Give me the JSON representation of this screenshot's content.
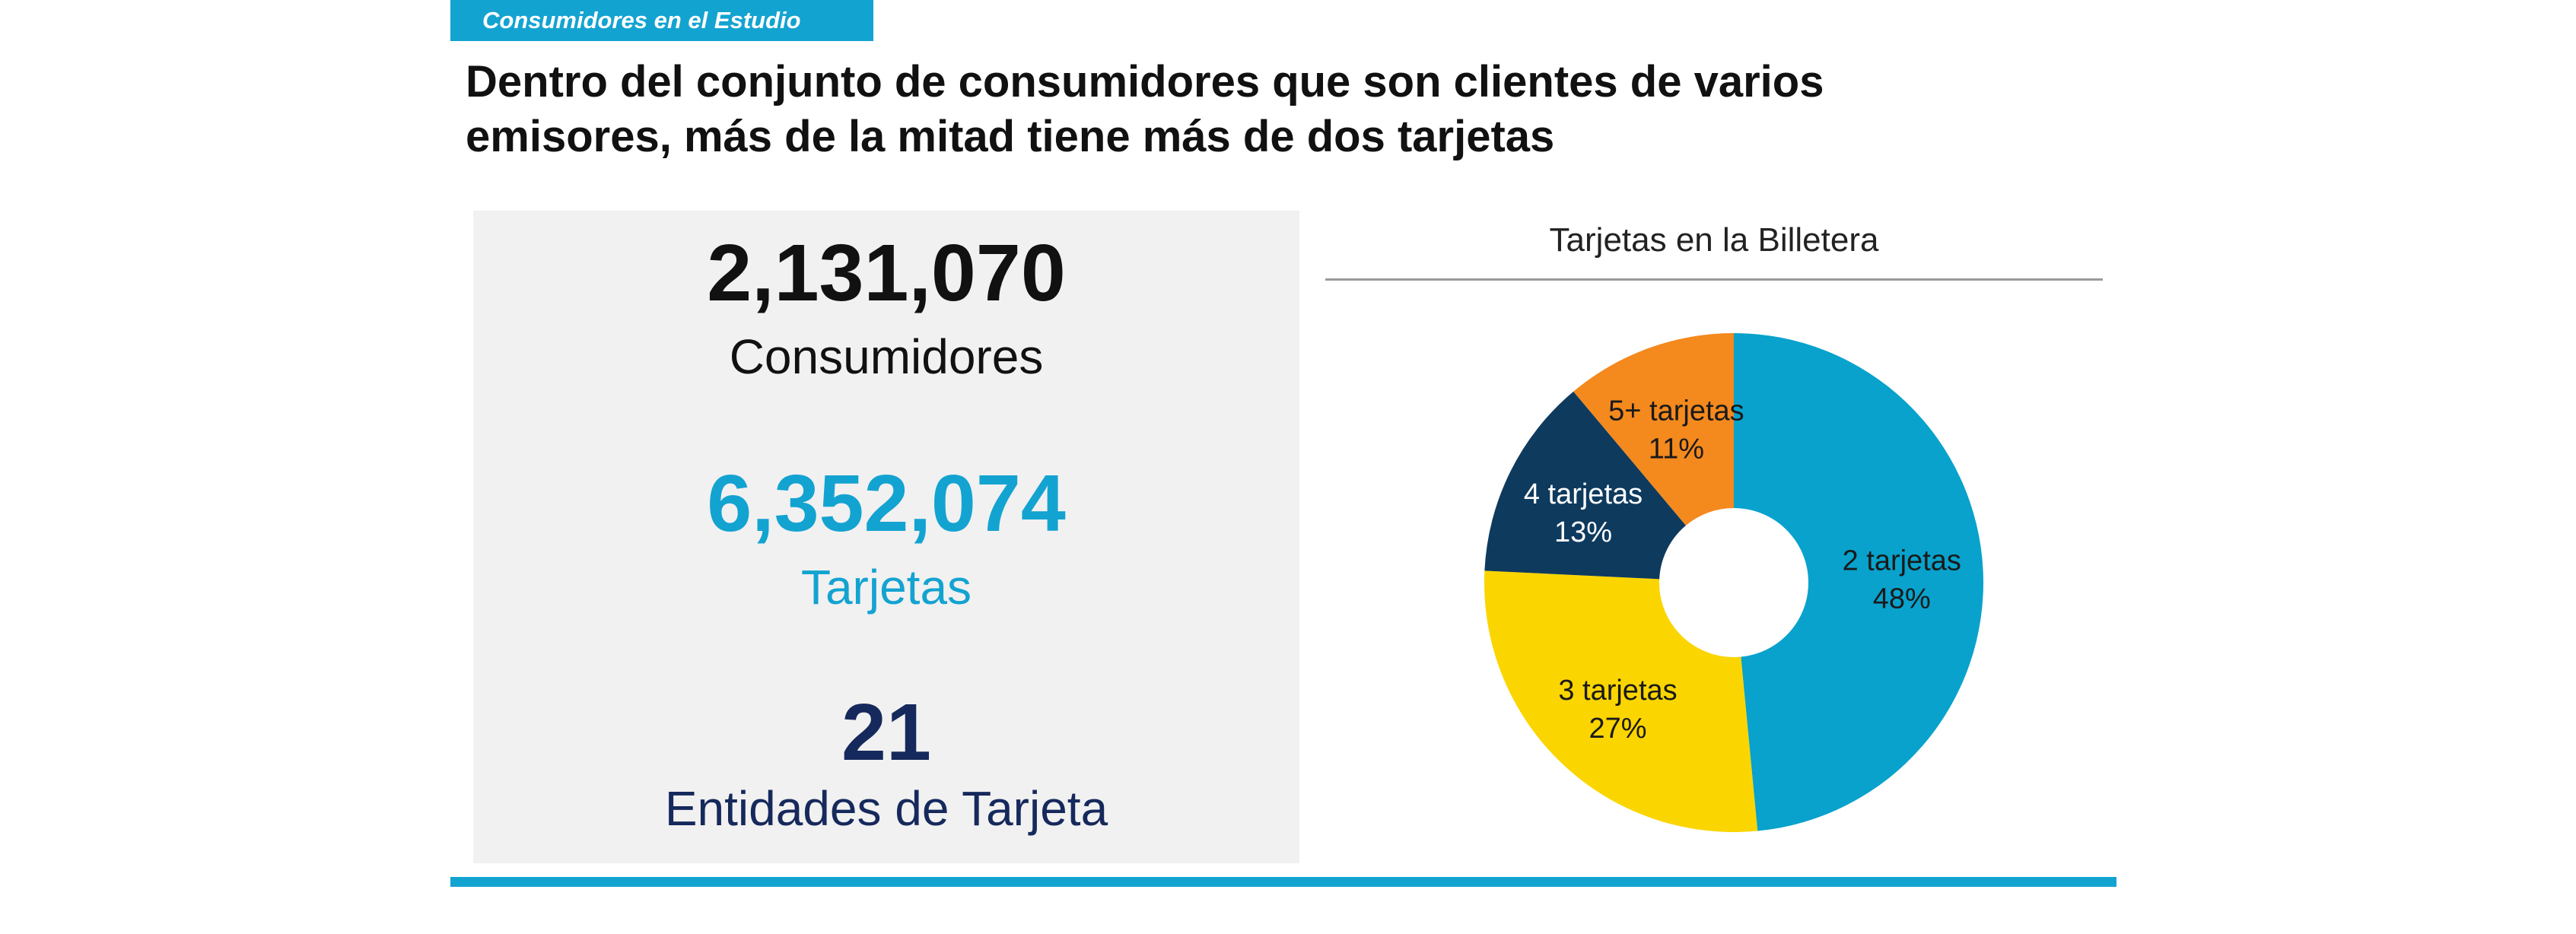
{
  "section_tag": "Consumidores  en el Estudio",
  "headline": {
    "line1": "Dentro del conjunto de consumidores que son clientes de varios",
    "line2": "emisores, más de la mitad tiene más de dos tarjetas"
  },
  "stats": [
    {
      "value": "2,131,070",
      "label": "Consumidores",
      "color": "#111111"
    },
    {
      "value": "6,352,074",
      "label": "Tarjetas",
      "color": "#13a3d1"
    },
    {
      "value": "21",
      "label": "Entidades de Tarjeta",
      "color": "#16295c"
    }
  ],
  "colors": {
    "accent": "#13a3d1",
    "panel": "#f1f1f1"
  },
  "chart_data": {
    "type": "pie",
    "title": "Tarjetas en la Billetera",
    "donut": true,
    "slices": [
      {
        "label": "2 tarjetas",
        "pct_label": "48%",
        "value": 48,
        "color": "#08a2cc",
        "text_color": "#1a1a1a"
      },
      {
        "label": "3 tarjetas",
        "pct_label": "27%",
        "value": 27,
        "color": "#fbd500",
        "text_color": "#1a1a1a"
      },
      {
        "label": "4 tarjetas",
        "pct_label": "13%",
        "value": 13,
        "color": "#0e3a5d",
        "text_color": "#ffffff"
      },
      {
        "label": "5+ tarjetas",
        "pct_label": "11%",
        "value": 11,
        "color": "#f4891e",
        "text_color": "#1a1a1a"
      }
    ]
  }
}
